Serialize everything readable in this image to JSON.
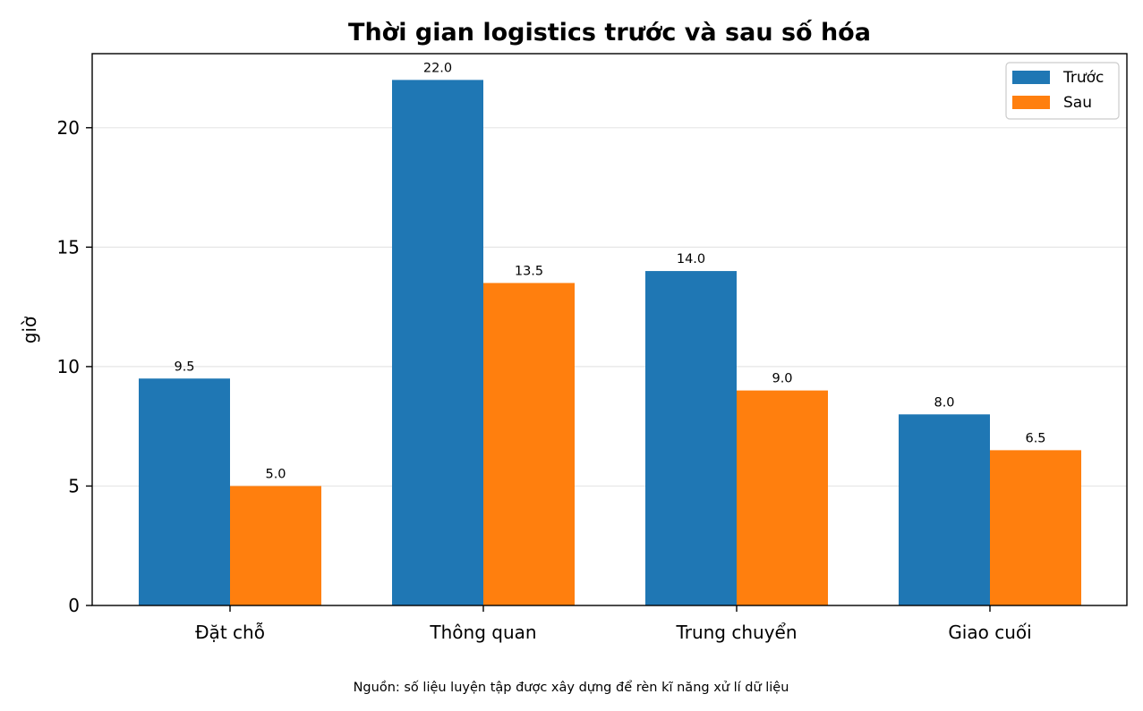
{
  "chart_data": {
    "type": "bar",
    "title": "Thời gian logistics trước và sau số hóa",
    "xlabel": "",
    "ylabel": "giờ",
    "categories": [
      "Đặt chỗ",
      "Thông quan",
      "Trung chuyển",
      "Giao cuối"
    ],
    "series": [
      {
        "name": "Trước",
        "color": "#1f77b4",
        "values": [
          9.5,
          22.0,
          14.0,
          8.0
        ],
        "labels": [
          "9.5",
          "22.0",
          "14.0",
          "8.0"
        ]
      },
      {
        "name": "Sau",
        "color": "#ff7f0e",
        "values": [
          5.0,
          13.5,
          9.0,
          6.5
        ],
        "labels": [
          "5.0",
          "13.5",
          "9.0",
          "6.5"
        ]
      }
    ],
    "ylim": [
      0,
      23.1
    ],
    "yticks": [
      0,
      5,
      10,
      15,
      20
    ],
    "ytick_labels": [
      "0",
      "5",
      "10",
      "15",
      "20"
    ],
    "grid": "y",
    "legend_position": "top-right",
    "source_note": "Nguồn: số liệu luyện tập được xây dựng để rèn kĩ năng xử lí dữ liệu"
  }
}
